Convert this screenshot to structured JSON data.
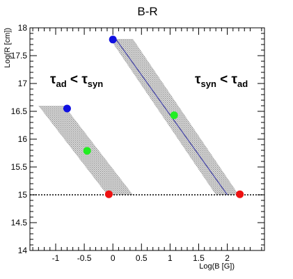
{
  "chart_data": {
    "type": "scatter",
    "title": "B-R",
    "xlabel": "Log(B [G])",
    "ylabel": "Log(R [cm])",
    "xlim": [
      -1.45,
      2.65
    ],
    "ylim": [
      14,
      18
    ],
    "x_ticks": [
      "-1",
      "-0.5",
      "0",
      "0.5",
      "1",
      "1.5",
      "2"
    ],
    "y_ticks": [
      "14",
      "14.5",
      "15",
      "15.5",
      "16",
      "16.5",
      "17",
      "17.5",
      "18"
    ],
    "reference_line": {
      "y": 15,
      "style": "dotted"
    },
    "regions": [
      {
        "polygon": [
          [
            -1.3,
            16.6
          ],
          [
            -0.85,
            16.6
          ],
          [
            0.35,
            15.0
          ],
          [
            -0.1,
            15.0
          ]
        ],
        "label": {
          "main_left": "τ",
          "sub_left": "ad",
          "operator": "<",
          "main_right": "τ",
          "sub_right": "syn"
        }
      },
      {
        "polygon": [
          [
            -0.05,
            17.8
          ],
          [
            0.35,
            17.8
          ],
          [
            2.2,
            15.0
          ],
          [
            1.8,
            15.0
          ]
        ],
        "label": {
          "main_left": "τ",
          "sub_left": "syn",
          "operator": "<",
          "main_right": "τ",
          "sub_right": "ad"
        }
      }
    ],
    "line_series": [
      {
        "x": [
          0.05,
          2.0
        ],
        "y": [
          17.8,
          15.0
        ],
        "color": "#4a4aa8"
      }
    ],
    "points": [
      {
        "x": 0.0,
        "y": 17.79,
        "color": "#1010e0"
      },
      {
        "x": 1.07,
        "y": 16.43,
        "color": "#22ee22"
      },
      {
        "x": 2.22,
        "y": 15.01,
        "color": "#ee1111"
      },
      {
        "x": -0.8,
        "y": 16.55,
        "color": "#1010e0"
      },
      {
        "x": -0.45,
        "y": 15.79,
        "color": "#22ee22"
      },
      {
        "x": -0.07,
        "y": 15.01,
        "color": "#ee1111"
      }
    ],
    "grid": false
  }
}
